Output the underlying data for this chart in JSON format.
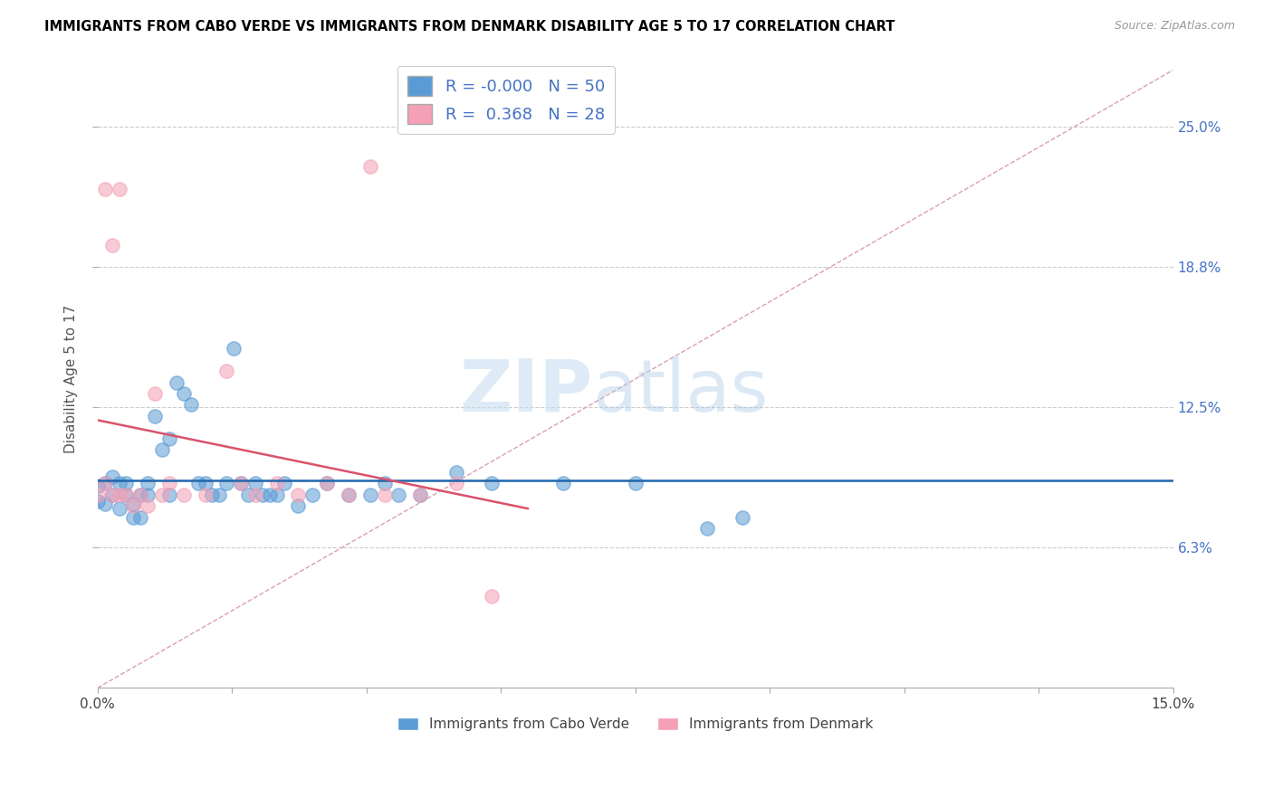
{
  "title": "IMMIGRANTS FROM CABO VERDE VS IMMIGRANTS FROM DENMARK DISABILITY AGE 5 TO 17 CORRELATION CHART",
  "source": "Source: ZipAtlas.com",
  "ylabel": "Disability Age 5 to 17",
  "xmin": 0.0,
  "xmax": 0.15,
  "ymin": 0.0,
  "ymax": 0.275,
  "R_cabo_verde": -0.0,
  "N_cabo_verde": 50,
  "R_denmark": 0.368,
  "N_denmark": 28,
  "color_cabo_verde": "#5b9bd5",
  "color_denmark": "#f4a0b5",
  "legend_cabo_verde": "Immigrants from Cabo Verde",
  "legend_denmark": "Immigrants from Denmark",
  "watermark_zip": "ZIP",
  "watermark_atlas": "atlas",
  "cabo_verde_x": [
    0.0,
    0.0,
    0.001,
    0.001,
    0.002,
    0.002,
    0.003,
    0.003,
    0.004,
    0.004,
    0.005,
    0.005,
    0.006,
    0.006,
    0.007,
    0.007,
    0.008,
    0.009,
    0.01,
    0.01,
    0.011,
    0.012,
    0.013,
    0.014,
    0.015,
    0.016,
    0.017,
    0.018,
    0.019,
    0.02,
    0.021,
    0.022,
    0.023,
    0.024,
    0.025,
    0.026,
    0.028,
    0.03,
    0.032,
    0.035,
    0.038,
    0.04,
    0.042,
    0.045,
    0.05,
    0.055,
    0.065,
    0.075,
    0.085,
    0.09
  ],
  "cabo_verde_y": [
    0.09,
    0.083,
    0.091,
    0.082,
    0.094,
    0.086,
    0.091,
    0.08,
    0.086,
    0.091,
    0.076,
    0.082,
    0.086,
    0.076,
    0.091,
    0.086,
    0.121,
    0.106,
    0.111,
    0.086,
    0.136,
    0.131,
    0.126,
    0.091,
    0.091,
    0.086,
    0.086,
    0.091,
    0.151,
    0.091,
    0.086,
    0.091,
    0.086,
    0.086,
    0.086,
    0.091,
    0.081,
    0.086,
    0.091,
    0.086,
    0.086,
    0.091,
    0.086,
    0.086,
    0.096,
    0.091,
    0.091,
    0.091,
    0.071,
    0.076
  ],
  "denmark_x": [
    0.0,
    0.001,
    0.001,
    0.002,
    0.002,
    0.003,
    0.003,
    0.004,
    0.005,
    0.006,
    0.007,
    0.008,
    0.009,
    0.01,
    0.012,
    0.015,
    0.018,
    0.02,
    0.022,
    0.025,
    0.028,
    0.032,
    0.035,
    0.038,
    0.04,
    0.045,
    0.05,
    0.055
  ],
  "denmark_y": [
    0.086,
    0.091,
    0.222,
    0.197,
    0.086,
    0.222,
    0.086,
    0.086,
    0.081,
    0.086,
    0.081,
    0.131,
    0.086,
    0.091,
    0.086,
    0.086,
    0.141,
    0.091,
    0.086,
    0.091,
    0.086,
    0.091,
    0.086,
    0.232,
    0.086,
    0.086,
    0.091,
    0.041
  ]
}
